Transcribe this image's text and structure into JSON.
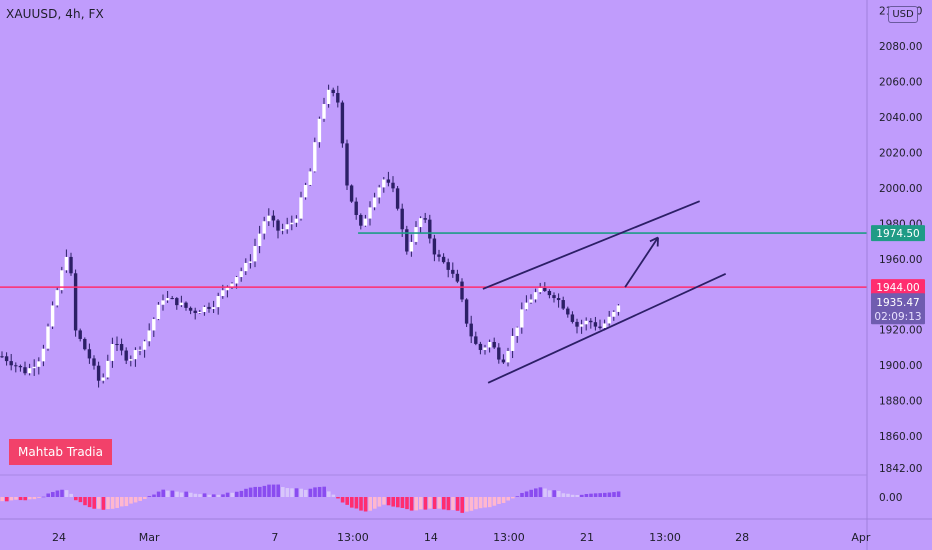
{
  "symbol_label": "XAUUSD, 4h, FX",
  "currency_button": "USD",
  "watermark": "Mahtab Tradia",
  "colors": {
    "background": "#c09cfc",
    "candle_up": "#ffffff",
    "candle_down": "#2c1f66",
    "support_line": "#ff2d6f",
    "target_line": "#1f9b86",
    "channel": "#2c1f66",
    "macd_pos": "#8a4cf0",
    "macd_pos_light": "#d8c6fb",
    "macd_neg": "#ff2d6f",
    "macd_neg_light": "#ffb7cf"
  },
  "chart_data": {
    "type": "candlestick",
    "interval": "4h",
    "ylim": [
      1838,
      2106
    ],
    "y_ticks": [
      1842,
      1860,
      1880,
      1900,
      1920,
      1940,
      1960,
      1980,
      2000,
      2020,
      2040,
      2060,
      2080,
      2100
    ],
    "y_tick_labels": [
      "1842.00",
      "1860.00",
      "1880.00",
      "1900.00",
      "1920.00",
      "1940.00",
      "1960.00",
      "1980.00",
      "2000.00",
      "2020.00",
      "2040.00",
      "2060.00",
      "2080.00",
      "2100.00"
    ],
    "x_labels": [
      {
        "text": "24",
        "pos": 0.068
      },
      {
        "text": "Mar",
        "pos": 0.172
      },
      {
        "text": "7",
        "pos": 0.317
      },
      {
        "text": "13:00",
        "pos": 0.407
      },
      {
        "text": "14",
        "pos": 0.497
      },
      {
        "text": "13:00",
        "pos": 0.587
      },
      {
        "text": "21",
        "pos": 0.677
      },
      {
        "text": "13:00",
        "pos": 0.767
      },
      {
        "text": "28",
        "pos": 0.856
      },
      {
        "text": "Apr",
        "pos": 0.993
      }
    ],
    "horizontal_lines": [
      {
        "price": 1944.0,
        "label": "1944.00",
        "color": "#ff2d6f"
      },
      {
        "price": 1974.5,
        "label": "1974.50",
        "color": "#1f9b86",
        "start_pos": 0.413
      }
    ],
    "current_price": {
      "price": 1935.47,
      "label": "1935.47",
      "countdown": "02:09:13"
    },
    "channel": [
      {
        "from": [
          0.557,
          1943.0
        ],
        "to": [
          0.807,
          1992.5
        ]
      },
      {
        "from": [
          0.563,
          1890.0
        ],
        "to": [
          0.837,
          1951.5
        ]
      }
    ],
    "projection_arrow": {
      "from": [
        0.721,
        1944.0
      ],
      "to": [
        0.759,
        1972.0
      ]
    },
    "anchors": [
      [
        0.0,
        1905
      ],
      [
        0.028,
        1896
      ],
      [
        0.045,
        1905
      ],
      [
        0.06,
        1935
      ],
      [
        0.077,
        1968
      ],
      [
        0.084,
        1920
      ],
      [
        0.102,
        1903
      ],
      [
        0.114,
        1888
      ],
      [
        0.127,
        1913
      ],
      [
        0.146,
        1903
      ],
      [
        0.165,
        1914
      ],
      [
        0.185,
        1938
      ],
      [
        0.2,
        1936
      ],
      [
        0.22,
        1930
      ],
      [
        0.243,
        1934
      ],
      [
        0.262,
        1946
      ],
      [
        0.285,
        1958
      ],
      [
        0.305,
        1985
      ],
      [
        0.32,
        1975
      ],
      [
        0.338,
        1982
      ],
      [
        0.356,
        2010
      ],
      [
        0.368,
        2045
      ],
      [
        0.378,
        2055
      ],
      [
        0.388,
        2048
      ],
      [
        0.398,
        2002
      ],
      [
        0.413,
        1976
      ],
      [
        0.428,
        1995
      ],
      [
        0.44,
        2005
      ],
      [
        0.454,
        1996
      ],
      [
        0.466,
        1964
      ],
      [
        0.485,
        1985
      ],
      [
        0.5,
        1962
      ],
      [
        0.515,
        1955
      ],
      [
        0.526,
        1945
      ],
      [
        0.538,
        1920
      ],
      [
        0.55,
        1908
      ],
      [
        0.563,
        1913
      ],
      [
        0.577,
        1902
      ],
      [
        0.59,
        1917
      ],
      [
        0.603,
        1934
      ],
      [
        0.618,
        1942
      ],
      [
        0.636,
        1940
      ],
      [
        0.65,
        1932
      ],
      [
        0.663,
        1922
      ],
      [
        0.677,
        1925
      ],
      [
        0.69,
        1921
      ],
      [
        0.704,
        1928
      ],
      [
        0.713,
        1934
      ]
    ],
    "macd": {
      "zero_label": "0.00",
      "anchors": [
        [
          0.0,
          -2
        ],
        [
          0.04,
          -1
        ],
        [
          0.06,
          3
        ],
        [
          0.075,
          4
        ],
        [
          0.085,
          -2
        ],
        [
          0.105,
          -6
        ],
        [
          0.118,
          -7
        ],
        [
          0.14,
          -5
        ],
        [
          0.16,
          -2
        ],
        [
          0.185,
          4
        ],
        [
          0.22,
          2
        ],
        [
          0.25,
          1
        ],
        [
          0.29,
          5
        ],
        [
          0.31,
          7
        ],
        [
          0.33,
          5
        ],
        [
          0.35,
          4
        ],
        [
          0.37,
          6
        ],
        [
          0.395,
          -4
        ],
        [
          0.418,
          -8
        ],
        [
          0.44,
          -4
        ],
        [
          0.47,
          -7
        ],
        [
          0.505,
          -6
        ],
        [
          0.53,
          -8
        ],
        [
          0.555,
          -6
        ],
        [
          0.58,
          -3
        ],
        [
          0.6,
          2
        ],
        [
          0.62,
          5
        ],
        [
          0.64,
          3
        ],
        [
          0.66,
          1
        ],
        [
          0.68,
          2
        ],
        [
          0.713,
          3
        ]
      ]
    }
  }
}
